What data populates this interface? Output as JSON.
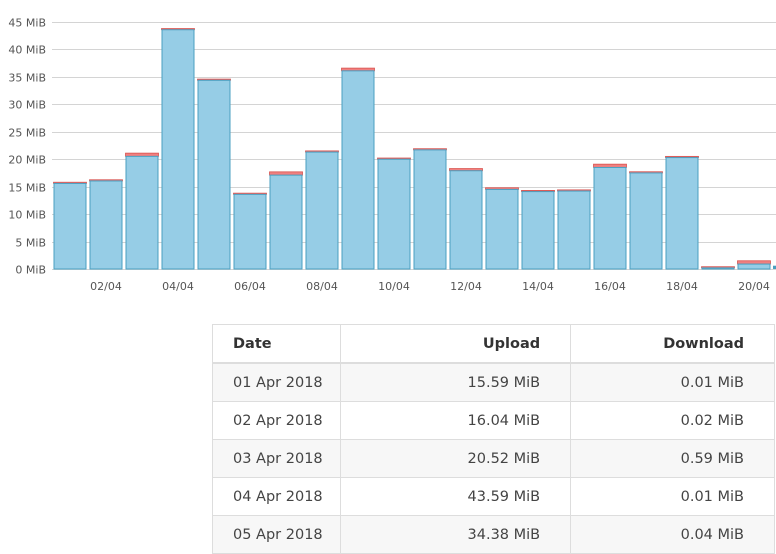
{
  "chart_data": {
    "type": "bar",
    "stacked": true,
    "y_unit": "MiB",
    "ylim": [
      0,
      45
    ],
    "y_ticks": [
      "0 MiB",
      "5 MiB",
      "10 MiB",
      "15 MiB",
      "20 MiB",
      "25 MiB",
      "30 MiB",
      "35 MiB",
      "40 MiB",
      "45 MiB"
    ],
    "y_tick_values": [
      0,
      5,
      10,
      15,
      20,
      25,
      30,
      35,
      40,
      45
    ],
    "categories": [
      "01/04",
      "02/04",
      "03/04",
      "04/04",
      "05/04",
      "06/04",
      "07/04",
      "08/04",
      "09/04",
      "10/04",
      "11/04",
      "12/04",
      "13/04",
      "14/04",
      "15/04",
      "16/04",
      "17/04",
      "18/04",
      "19/04",
      "20/04"
    ],
    "x_tick_labels": [
      "02/04",
      "04/04",
      "06/04",
      "08/04",
      "10/04",
      "12/04",
      "14/04",
      "16/04",
      "18/04",
      "20/04"
    ],
    "grid": true,
    "colors": {
      "upload": "#96cde6",
      "upload_border": "#4a9fc0",
      "download": "#f08080"
    },
    "series": [
      {
        "name": "Upload",
        "values": [
          15.59,
          16.04,
          20.52,
          43.59,
          34.38,
          13.6,
          17.1,
          21.3,
          36.1,
          20.0,
          21.7,
          17.9,
          14.5,
          14.1,
          14.2,
          18.5,
          17.5,
          20.3,
          0.2,
          0.9
        ]
      },
      {
        "name": "Download",
        "values": [
          0.01,
          0.02,
          0.59,
          0.01,
          0.04,
          0.1,
          0.6,
          0.1,
          0.5,
          0.2,
          0.2,
          0.4,
          0.3,
          0.1,
          0.1,
          0.6,
          0.1,
          0.2,
          0.1,
          0.6
        ]
      }
    ]
  },
  "table": {
    "headers": {
      "date": "Date",
      "upload": "Upload",
      "download": "Download"
    },
    "rows": [
      {
        "date": "01 Apr 2018",
        "upload": "15.59 MiB",
        "download": "0.01 MiB"
      },
      {
        "date": "02 Apr 2018",
        "upload": "16.04 MiB",
        "download": "0.02 MiB"
      },
      {
        "date": "03 Apr 2018",
        "upload": "20.52 MiB",
        "download": "0.59 MiB"
      },
      {
        "date": "04 Apr 2018",
        "upload": "43.59 MiB",
        "download": "0.01 MiB"
      },
      {
        "date": "05 Apr 2018",
        "upload": "34.38 MiB",
        "download": "0.04 MiB"
      }
    ]
  }
}
